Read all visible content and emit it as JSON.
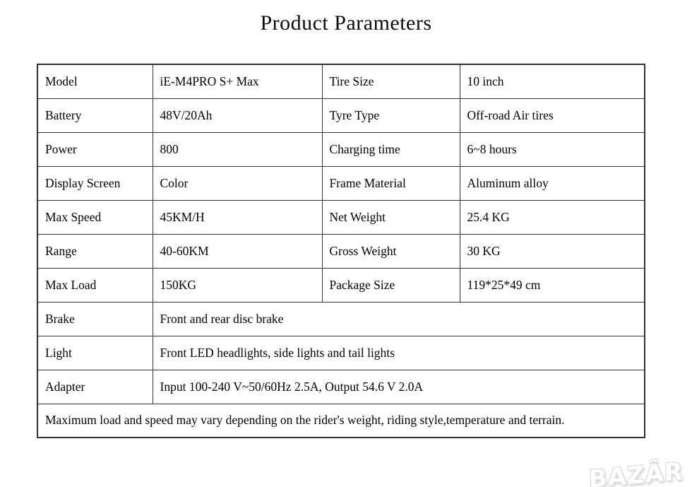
{
  "page": {
    "title": "Product Parameters"
  },
  "table": {
    "spec_rows": [
      {
        "label1": "Model",
        "value1": "iE-M4PRO S+ Max",
        "label2": "Tire Size",
        "value2": "10 inch"
      },
      {
        "label1": "Battery",
        "value1": "48V/20Ah",
        "label2": "Tyre Type",
        "value2": "Off-road Air tires"
      },
      {
        "label1": "Power",
        "value1": "800",
        "label2": "Charging time",
        "value2": "6~8 hours"
      },
      {
        "label1": "Display Screen",
        "value1": "Color",
        "label2": "Frame Material",
        "value2": "Aluminum alloy"
      },
      {
        "label1": "Max Speed",
        "value1": "45KM/H",
        "label2": "Net Weight",
        "value2": "25.4 KG"
      },
      {
        "label1": "Range",
        "value1": "40-60KM",
        "label2": "Gross Weight",
        "value2": "30 KG"
      },
      {
        "label1": "Max Load",
        "value1": "150KG",
        "label2": "Package Size",
        "value2": "119*25*49 cm"
      }
    ],
    "wide_rows": [
      {
        "label": "Brake",
        "value": "Front and rear disc brake"
      },
      {
        "label": "Light",
        "value": "Front LED headlights, side lights and tail lights"
      },
      {
        "label": "Adapter",
        "value": "Input 100-240 V~50/60Hz 2.5A, Output 54.6 V 2.0A"
      }
    ],
    "note": "Maximum load and speed may vary depending on the rider's weight, riding style,temperature and terrain."
  },
  "watermark": {
    "text": "BAZÂR"
  },
  "colors": {
    "border": "#333333",
    "text": "#000000",
    "background": "#ffffff",
    "watermark": "#d6dbdb"
  }
}
